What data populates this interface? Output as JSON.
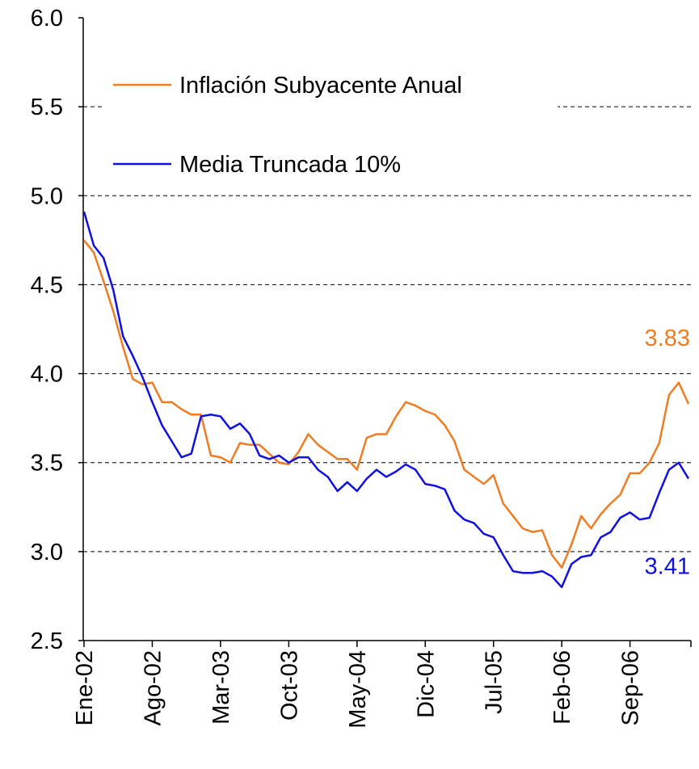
{
  "chart_data": {
    "type": "line",
    "categories": [
      "Ene-02",
      null,
      null,
      null,
      null,
      null,
      null,
      "Ago-02",
      null,
      null,
      null,
      null,
      null,
      null,
      "Mar-03",
      null,
      null,
      null,
      null,
      null,
      null,
      "Oct-03",
      null,
      null,
      null,
      null,
      null,
      null,
      "May-04",
      null,
      null,
      null,
      null,
      null,
      null,
      "Dic-04",
      null,
      null,
      null,
      null,
      null,
      null,
      "Jul-05",
      null,
      null,
      null,
      null,
      null,
      null,
      "Feb-06",
      null,
      null,
      null,
      null,
      null,
      null,
      "Sep-06",
      null,
      null,
      null,
      null,
      null,
      null
    ],
    "series": [
      {
        "name": "Inflación Subyacente Anual",
        "color": "#f07c22",
        "values": [
          4.75,
          4.68,
          4.52,
          4.35,
          4.15,
          3.97,
          3.94,
          3.95,
          3.84,
          3.84,
          3.8,
          3.77,
          3.77,
          3.54,
          3.53,
          3.5,
          3.61,
          3.6,
          3.6,
          3.55,
          3.5,
          3.49,
          3.56,
          3.66,
          3.6,
          3.56,
          3.52,
          3.52,
          3.46,
          3.64,
          3.66,
          3.66,
          3.76,
          3.84,
          3.82,
          3.79,
          3.77,
          3.71,
          3.62,
          3.46,
          3.42,
          3.38,
          3.43,
          3.27,
          3.2,
          3.13,
          3.11,
          3.12,
          2.98,
          2.91,
          3.04,
          3.2,
          3.13,
          3.21,
          3.27,
          3.32,
          3.44,
          3.44,
          3.5,
          3.61,
          3.88,
          3.95,
          3.83
        ]
      },
      {
        "name": "Media Truncada 10%",
        "color": "#1010e0",
        "values": [
          4.91,
          4.72,
          4.65,
          4.47,
          4.21,
          4.1,
          3.98,
          3.84,
          3.71,
          3.62,
          3.53,
          3.55,
          3.76,
          3.77,
          3.76,
          3.69,
          3.72,
          3.66,
          3.54,
          3.52,
          3.54,
          3.5,
          3.53,
          3.53,
          3.46,
          3.42,
          3.34,
          3.39,
          3.34,
          3.41,
          3.46,
          3.42,
          3.45,
          3.49,
          3.46,
          3.38,
          3.37,
          3.35,
          3.23,
          3.18,
          3.16,
          3.1,
          3.08,
          2.98,
          2.89,
          2.88,
          2.88,
          2.89,
          2.86,
          2.8,
          2.93,
          2.97,
          2.98,
          3.08,
          3.11,
          3.19,
          3.22,
          3.18,
          3.19,
          3.33,
          3.46,
          3.5,
          3.41
        ]
      }
    ],
    "ylim": [
      2.5,
      6.0
    ],
    "yticks": [
      {
        "value": 2.5,
        "label": "2.5"
      },
      {
        "value": 3,
        "label": "3.0"
      },
      {
        "value": 3.5,
        "label": "3.5"
      },
      {
        "value": 4,
        "label": "4.0"
      },
      {
        "value": 4.5,
        "label": "4.5"
      },
      {
        "value": 5,
        "label": "5.0"
      },
      {
        "value": 5.5,
        "label": "5.5"
      },
      {
        "value": 6,
        "label": "6.0"
      }
    ],
    "grid": true,
    "legend": "upper-left",
    "data_labels": "last"
  }
}
